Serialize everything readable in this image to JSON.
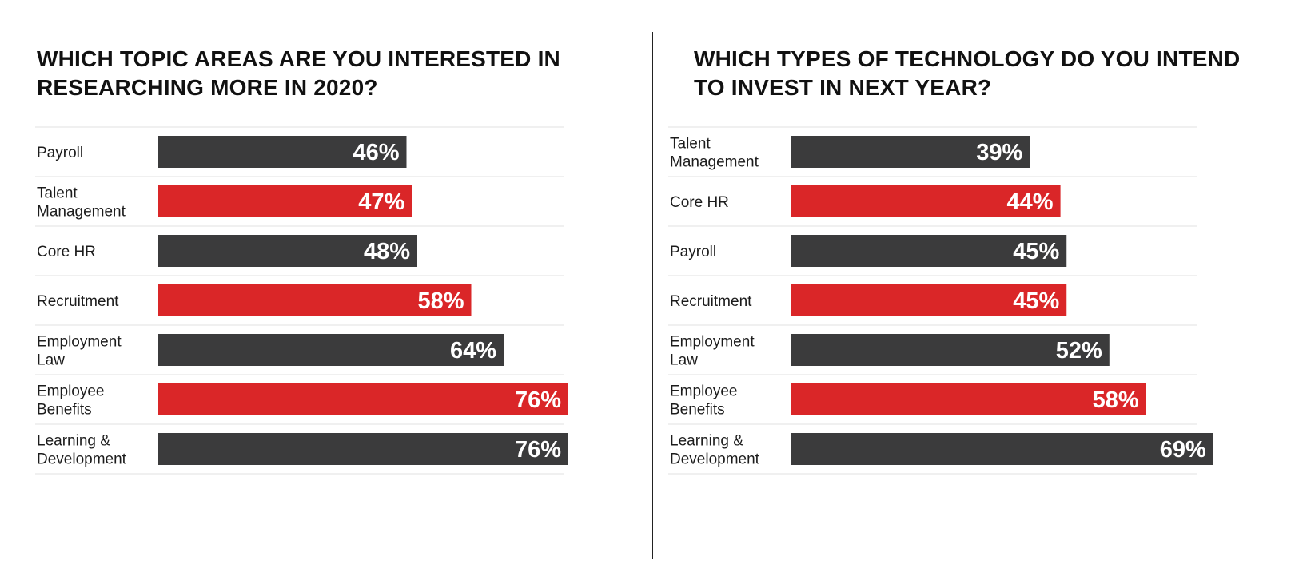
{
  "colors": {
    "dark": "#3b3b3c",
    "red": "#da2628",
    "label_text": "#1c1c1c",
    "value_text": "#ffffff"
  },
  "chart_data": [
    {
      "type": "bar",
      "orientation": "horizontal",
      "title": "WHICH TOPIC AREAS ARE YOU INTERESTED IN RESEARCHING MORE IN 2020?",
      "categories": [
        "Payroll",
        "Talent Management",
        "Core HR",
        "Recruitment",
        "Employment Law",
        "Employee Benefits",
        "Learning & Development"
      ],
      "category_lines": [
        [
          "Payroll"
        ],
        [
          "Talent",
          "Management"
        ],
        [
          "Core HR"
        ],
        [
          "Recruitment"
        ],
        [
          "Employment",
          "Law"
        ],
        [
          "Employee",
          "Benefits"
        ],
        [
          "Learning &",
          "Development"
        ]
      ],
      "values": [
        46,
        47,
        48,
        58,
        64,
        76,
        76
      ],
      "value_labels": [
        "46%",
        "47%",
        "48%",
        "58%",
        "64%",
        "76%",
        "76%"
      ],
      "bar_colors": [
        "dark",
        "red",
        "dark",
        "red",
        "dark",
        "red",
        "dark"
      ],
      "unit": "%"
    },
    {
      "type": "bar",
      "orientation": "horizontal",
      "title": "WHICH TYPES OF TECHNOLOGY DO YOU INTEND TO INVEST IN NEXT YEAR?",
      "categories": [
        "Talent Management",
        "Core HR",
        "Payroll",
        "Recruitment",
        "Employment Law",
        "Employee Benefits",
        "Learning & Development"
      ],
      "category_lines": [
        [
          "Talent",
          "Management"
        ],
        [
          "Core HR"
        ],
        [
          "Payroll"
        ],
        [
          "Recruitment"
        ],
        [
          "Employment",
          "Law"
        ],
        [
          "Employee",
          "Benefits"
        ],
        [
          "Learning &",
          "Development"
        ]
      ],
      "values": [
        39,
        44,
        45,
        45,
        52,
        58,
        69
      ],
      "value_labels": [
        "39%",
        "44%",
        "45%",
        "45%",
        "52%",
        "58%",
        "69%"
      ],
      "bar_colors": [
        "dark",
        "red",
        "dark",
        "red",
        "dark",
        "red",
        "dark"
      ],
      "unit": "%"
    }
  ]
}
